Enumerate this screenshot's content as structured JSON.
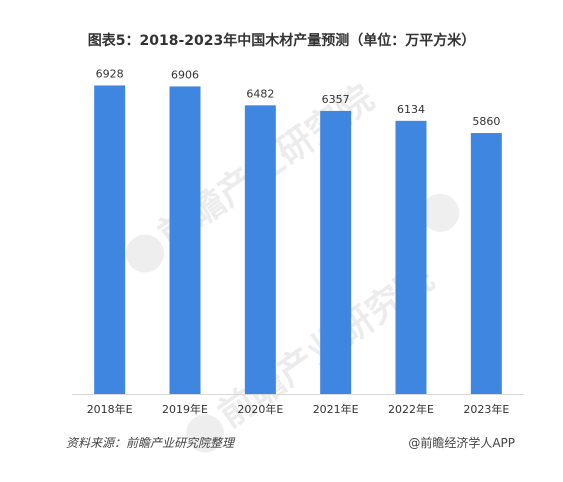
{
  "title": "图表5：2018-2023年中国木材产量预测（单位：万平方米）",
  "source": "资料来源：前瞻产业研究院整理",
  "credit": "@前瞻经济学人APP",
  "watermark": "前瞻产业研究院",
  "colors": {
    "bar": "#3f86e0",
    "axis": "#d9d9d9",
    "text": "#333333"
  },
  "chart_data": {
    "type": "bar",
    "categories": [
      "2018年E",
      "2019年E",
      "2020年E",
      "2021年E",
      "2022年E",
      "2023年E"
    ],
    "values": [
      6928,
      6906,
      6482,
      6357,
      6134,
      5860
    ],
    "title": "图表5：2018-2023年中国木材产量预测（单位：万平方米）",
    "xlabel": "",
    "ylabel": "",
    "ylim": [
      0,
      7500
    ],
    "grid": false,
    "legend": "none"
  }
}
